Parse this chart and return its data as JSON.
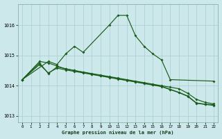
{
  "title": "Graphe pression niveau de la mer (hPa)",
  "bg_color": "#cce8eb",
  "grid_color": "#aacdd1",
  "line_color": "#1a5c1a",
  "xlim": [
    -0.5,
    22.5
  ],
  "ylim": [
    1012.8,
    1016.7
  ],
  "yticks": [
    1013,
    1014,
    1015,
    1016
  ],
  "xticks": [
    0,
    1,
    2,
    3,
    4,
    5,
    6,
    7,
    8,
    9,
    10,
    11,
    12,
    13,
    14,
    15,
    16,
    17,
    18,
    19,
    20,
    21,
    22
  ],
  "line1_x": [
    0,
    3,
    4,
    5,
    6,
    7,
    10,
    11,
    12,
    13,
    14,
    15,
    16,
    17,
    22
  ],
  "line1_y": [
    1014.2,
    1014.8,
    1014.7,
    1015.05,
    1015.3,
    1015.1,
    1016.0,
    1016.32,
    1016.32,
    1015.65,
    1015.3,
    1015.05,
    1014.85,
    1014.2,
    1014.15
  ],
  "line2_x": [
    0,
    2,
    3,
    4,
    5,
    6,
    7,
    8,
    9,
    10,
    11,
    12,
    13,
    14,
    15,
    16,
    17,
    18,
    19,
    20,
    21,
    22
  ],
  "line2_y": [
    1014.2,
    1014.8,
    1014.75,
    1014.65,
    1014.55,
    1014.5,
    1014.45,
    1014.4,
    1014.35,
    1014.3,
    1014.25,
    1014.2,
    1014.15,
    1014.1,
    1014.05,
    1014.0,
    1013.95,
    1013.9,
    1013.75,
    1013.55,
    1013.45,
    1013.4
  ],
  "line3_x": [
    0,
    2,
    3,
    4,
    5,
    6,
    7,
    8,
    9,
    10,
    11,
    12,
    13,
    14,
    15,
    16,
    17,
    18,
    19,
    20,
    21,
    22
  ],
  "line3_y": [
    1014.2,
    1014.7,
    1014.42,
    1014.58,
    1014.52,
    1014.47,
    1014.42,
    1014.37,
    1014.32,
    1014.27,
    1014.22,
    1014.17,
    1014.12,
    1014.07,
    1014.02,
    1013.97,
    1013.87,
    1013.77,
    1013.65,
    1013.42,
    1013.38,
    1013.35
  ],
  "line4_x": [
    0,
    2,
    3,
    4,
    5,
    6,
    7,
    8,
    9,
    10,
    11,
    12,
    13,
    14,
    15,
    16,
    17,
    18,
    19,
    20,
    21,
    22
  ],
  "line4_y": [
    1014.2,
    1014.75,
    1014.4,
    1014.62,
    1014.56,
    1014.5,
    1014.44,
    1014.38,
    1014.33,
    1014.28,
    1014.23,
    1014.18,
    1014.13,
    1014.08,
    1014.03,
    1013.98,
    1013.88,
    1013.78,
    1013.66,
    1013.43,
    1013.39,
    1013.37
  ]
}
